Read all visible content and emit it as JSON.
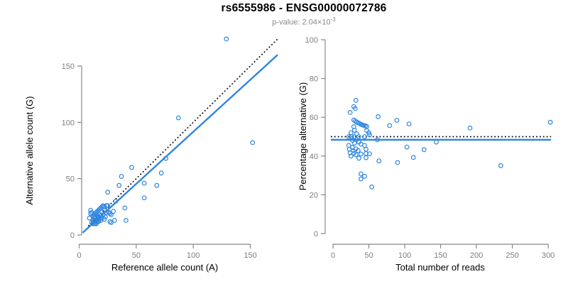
{
  "header": {
    "title": "rs6555986 - ENSG00000072786",
    "subtitle_prefix": "p-value: 2.04×10",
    "subtitle_exponent": "-3"
  },
  "style": {
    "point_color": "#2e86de",
    "regression_color": "#2e86de",
    "dotted_color": "#000000",
    "axis_color": "#888888",
    "tick_label_color": "#7d7d7d"
  },
  "chart_data": [
    {
      "type": "scatter",
      "panel": "left",
      "title": "rs6555986 - ENSG00000072786",
      "subtitle": "p-value: 2.04×10^-3",
      "xlabel": "Reference allele count (A)",
      "ylabel": "Alternative allele count (G)",
      "xlim": [
        0,
        175
      ],
      "ylim": [
        0,
        178
      ],
      "x_ticks": [
        0,
        50,
        100,
        150
      ],
      "y_ticks": [
        0,
        50,
        100,
        150
      ],
      "grid": false,
      "legend": false,
      "marker": "open-circle",
      "lines": [
        {
          "name": "identity",
          "style": "dotted",
          "color": "#000000",
          "slope": 1,
          "intercept": 0,
          "x_range": [
            8,
            174
          ]
        },
        {
          "name": "regression",
          "style": "solid",
          "color": "#2e86de",
          "slope": 0.924,
          "intercept": -0.8,
          "x_range": [
            3,
            174
          ]
        }
      ],
      "points_format": "[reference_allele_count, alternative_allele_count]",
      "points": [
        [
          129,
          174
        ],
        [
          87,
          104
        ],
        [
          152,
          82
        ],
        [
          76,
          68
        ],
        [
          46,
          60
        ],
        [
          72,
          55
        ],
        [
          37,
          52
        ],
        [
          57,
          46
        ],
        [
          35,
          44
        ],
        [
          68,
          44
        ],
        [
          57,
          33
        ],
        [
          25,
          38
        ],
        [
          40,
          24
        ],
        [
          30,
          21
        ],
        [
          41,
          13
        ],
        [
          27,
          12
        ],
        [
          31,
          13
        ],
        [
          28,
          11
        ],
        [
          10,
          22
        ],
        [
          10,
          19
        ],
        [
          11,
          20
        ],
        [
          9,
          15
        ],
        [
          12,
          17
        ],
        [
          13,
          18
        ],
        [
          14,
          19
        ],
        [
          15,
          20
        ],
        [
          16,
          21
        ],
        [
          17,
          22
        ],
        [
          18,
          23
        ],
        [
          19,
          24
        ],
        [
          13,
          16
        ],
        [
          20,
          25
        ],
        [
          21,
          26
        ],
        [
          14,
          16
        ],
        [
          22,
          25
        ],
        [
          24,
          26
        ],
        [
          12,
          13
        ],
        [
          16,
          17
        ],
        [
          25,
          26
        ],
        [
          13,
          13
        ],
        [
          18,
          18
        ],
        [
          11,
          11
        ],
        [
          15,
          15
        ],
        [
          22,
          22
        ],
        [
          14,
          13
        ],
        [
          17,
          16
        ],
        [
          32,
          30
        ],
        [
          16,
          14
        ],
        [
          19,
          17
        ],
        [
          12,
          10
        ],
        [
          21,
          18
        ],
        [
          15,
          12
        ],
        [
          24,
          20
        ],
        [
          13,
          10
        ],
        [
          18,
          14
        ],
        [
          26,
          20
        ],
        [
          16,
          12
        ],
        [
          20,
          15
        ],
        [
          14,
          10
        ],
        [
          23,
          16
        ],
        [
          17,
          12
        ],
        [
          27,
          19
        ],
        [
          15,
          10
        ],
        [
          19,
          13
        ],
        [
          28,
          18
        ],
        [
          22,
          14
        ]
      ]
    },
    {
      "type": "scatter",
      "panel": "right",
      "xlabel": "Total number of reads",
      "ylabel": "Percentage alternative (G)",
      "xlim": [
        0,
        305
      ],
      "ylim": [
        0,
        100
      ],
      "x_ticks": [
        0,
        50,
        100,
        150,
        200,
        250,
        300
      ],
      "y_ticks": [
        0,
        20,
        40,
        60,
        80,
        100
      ],
      "grid": false,
      "legend": false,
      "marker": "open-circle",
      "lines": [
        {
          "name": "expected-50pct",
          "style": "dotted",
          "color": "#000000",
          "y": 50,
          "x_range": [
            -3,
            304
          ]
        },
        {
          "name": "mean-alternative",
          "style": "solid",
          "color": "#2e86de",
          "y": 48.4,
          "x_range": [
            -3,
            304
          ]
        }
      ],
      "points_format": "[total_reads, percentage_alternative]",
      "points_derived_from": "chart_data[0].points via total = ref + alt, percentage = 100 * alt / (ref + alt)"
    }
  ]
}
